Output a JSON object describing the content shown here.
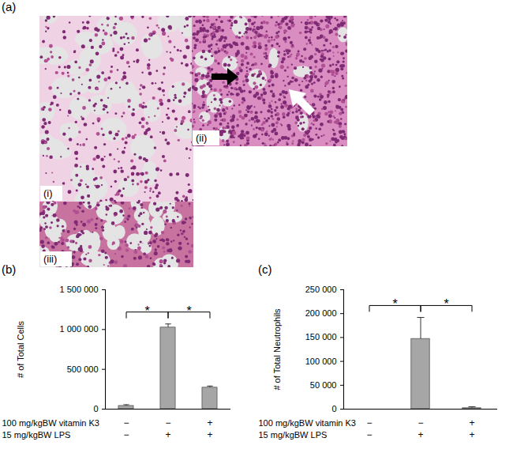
{
  "figure": {
    "label": "(a)",
    "images": [
      {
        "label": "(i)"
      },
      {
        "label": "(ii)"
      },
      {
        "label": "(iii)"
      }
    ]
  },
  "chart_data": [
    {
      "type": "bar",
      "title": "(b)",
      "y_label": "# of Total Cells",
      "categories": [
        null,
        null,
        null
      ],
      "treatments": [
        {
          "label": "100 mg/kgBW vitamin K3",
          "signs": [
            "−",
            "−",
            "+"
          ]
        },
        {
          "label": "15 mg/kgBW LPS",
          "signs": [
            "−",
            "+",
            "+"
          ]
        }
      ],
      "values": [
        40000,
        1025000,
        270000
      ],
      "errors": [
        15000,
        45000,
        20000
      ],
      "color": "#a6a6a6",
      "ylim": [
        0,
        1500000
      ],
      "yticks": [
        0,
        {
          "value": 500000,
          "label": "500 000"
        },
        {
          "value": 1000000,
          "label": "1 000 000"
        },
        {
          "value": 1500000,
          "label": "1 500 000"
        }
      ],
      "significance": [
        {
          "pair": [
            0,
            1
          ],
          "label": "*"
        },
        {
          "pair": [
            1,
            2
          ],
          "label": "*"
        }
      ]
    },
    {
      "type": "bar",
      "title": "(c)",
      "y_label": "# of Total Neutrophils",
      "categories": [
        null,
        null,
        null
      ],
      "treatments": [
        {
          "label": "100 mg/kgBW vitamin K3",
          "signs": [
            "−",
            "−",
            "+"
          ]
        },
        {
          "label": "15 mg/kgBW LPS",
          "signs": [
            "−",
            "+",
            "+"
          ]
        }
      ],
      "values": [
        0,
        147000,
        2000
      ],
      "errors": [
        0,
        45000,
        3000
      ],
      "color": "#a6a6a6",
      "ylim": [
        0,
        250000
      ],
      "yticks": [
        0,
        {
          "value": 50000,
          "label": "50 000"
        },
        {
          "value": 100000,
          "label": "100 000"
        },
        {
          "value": 150000,
          "label": "150 000"
        },
        {
          "value": 200000,
          "label": "200 000"
        },
        {
          "value": 250000,
          "label": "250 000"
        }
      ],
      "significance": [
        {
          "pair": [
            0,
            1
          ],
          "label": "*"
        },
        {
          "pair": [
            1,
            2
          ],
          "label": "*"
        }
      ]
    }
  ]
}
